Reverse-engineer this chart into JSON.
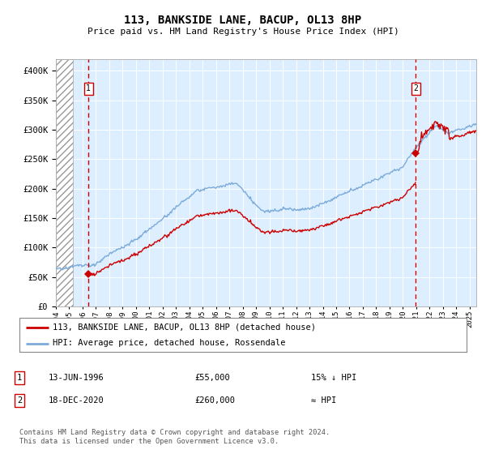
{
  "title": "113, BANKSIDE LANE, BACUP, OL13 8HP",
  "subtitle": "Price paid vs. HM Land Registry's House Price Index (HPI)",
  "legend_line1": "113, BANKSIDE LANE, BACUP, OL13 8HP (detached house)",
  "legend_line2": "HPI: Average price, detached house, Rossendale",
  "annotation1_label": "1",
  "annotation1_date": "13-JUN-1996",
  "annotation1_price": 55000,
  "annotation1_note": "15% ↓ HPI",
  "annotation2_label": "2",
  "annotation2_date": "18-DEC-2020",
  "annotation2_price": 260000,
  "annotation2_note": "≈ HPI",
  "footer": "Contains HM Land Registry data © Crown copyright and database right 2024.\nThis data is licensed under the Open Government Licence v3.0.",
  "hpi_color": "#7aabdb",
  "sale_color": "#cc0000",
  "background_plot": "#ddeeff",
  "ylim": [
    0,
    420000
  ],
  "xlim_start": 1994.0,
  "xlim_end": 2025.5,
  "sale1_x": 1996.44,
  "sale1_price": 55000,
  "sale2_x": 2020.96,
  "sale2_price": 260000,
  "vline_color": "#cc0000",
  "marker_size": 6,
  "hatch_end": 1995.3
}
